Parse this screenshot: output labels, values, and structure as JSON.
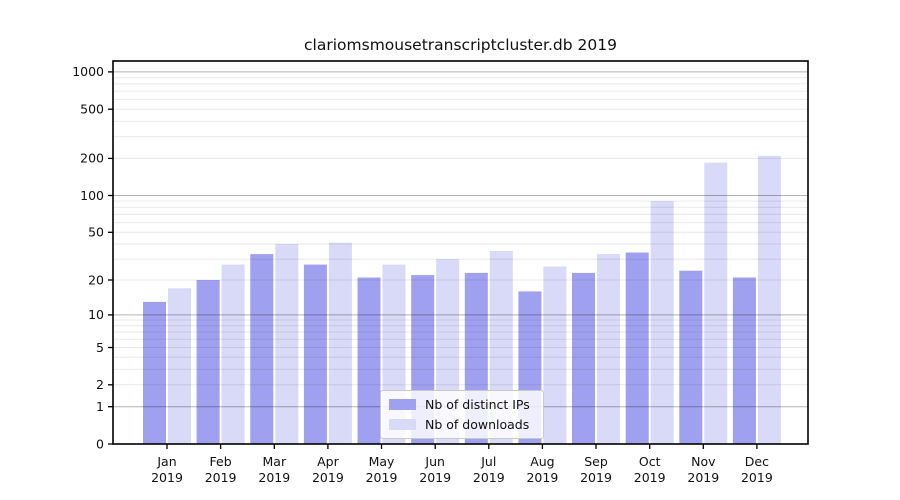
{
  "chart_data": {
    "type": "bar",
    "title": "clariomsmousetranscriptcluster.db 2019",
    "year": "2019",
    "categories": [
      "Jan",
      "Feb",
      "Mar",
      "Apr",
      "May",
      "Jun",
      "Jul",
      "Aug",
      "Sep",
      "Oct",
      "Nov",
      "Dec"
    ],
    "series": [
      {
        "name": "Nb of distinct IPs",
        "color": "#a0a0f0",
        "values": [
          13,
          20,
          33,
          27,
          21,
          22,
          23,
          16,
          23,
          34,
          24,
          21
        ]
      },
      {
        "name": "Nb of downloads",
        "color": "#d9d9f8",
        "values": [
          17,
          27,
          40,
          41,
          27,
          30,
          35,
          26,
          33,
          90,
          185,
          210
        ]
      }
    ],
    "xlabel": "",
    "ylabel": "",
    "yscale": "log1p",
    "yticks": [
      0,
      1,
      2,
      5,
      10,
      20,
      50,
      100,
      200,
      500,
      1000
    ],
    "ylim": [
      0,
      1230
    ],
    "grid": "horizontal major+minor, drawn over bars",
    "legend_position": "bottom-center inside plot",
    "colors": {
      "axis": "#000000",
      "grid_major": "rgba(0,0,0,0.30)",
      "grid_minor": "rgba(0,0,0,0.085)",
      "tick_text": "#111111",
      "background": "#ffffff"
    }
  }
}
